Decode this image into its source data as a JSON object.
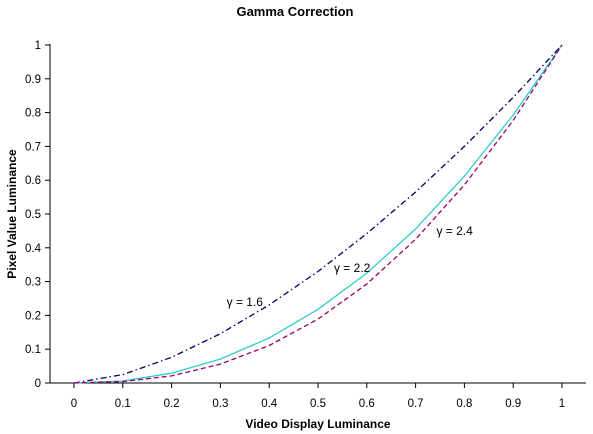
{
  "chart_data": {
    "type": "line",
    "title": "Gamma Correction",
    "xlabel": "Video Display Luminance",
    "ylabel": "Pixel Value Luminance",
    "xlim": [
      0,
      1
    ],
    "ylim": [
      0,
      1
    ],
    "x_ticks": [
      "0",
      "0.1",
      "0.2",
      "0.3",
      "0.4",
      "0.5",
      "0.6",
      "0.7",
      "0.8",
      "0.9",
      "1"
    ],
    "y_ticks": [
      "0",
      "0.1",
      "0.2",
      "0.3",
      "0.4",
      "0.5",
      "0.6",
      "0.7",
      "0.8",
      "0.9",
      "1"
    ],
    "grid": false,
    "x": [
      0,
      0.1,
      0.2,
      0.3,
      0.4,
      0.5,
      0.6,
      0.7,
      0.8,
      0.9,
      1.0
    ],
    "series": [
      {
        "name": "γ = 1.6",
        "values": [
          0,
          0.025,
          0.076,
          0.146,
          0.231,
          0.33,
          0.442,
          0.565,
          0.7,
          0.845,
          1.0
        ],
        "color": "#000066",
        "dash": "dashdot"
      },
      {
        "name": "γ = 2.2",
        "values": [
          0,
          0.006,
          0.029,
          0.071,
          0.133,
          0.218,
          0.325,
          0.456,
          0.612,
          0.793,
          1.0
        ],
        "color": "#33cccc",
        "dash": "solid"
      },
      {
        "name": "γ = 2.4",
        "values": [
          0,
          0.004,
          0.021,
          0.056,
          0.111,
          0.189,
          0.293,
          0.425,
          0.586,
          0.777,
          1.0
        ],
        "color": "#990066",
        "dash": "dashed"
      }
    ],
    "annotations": [
      {
        "text": "γ = 1.6",
        "x": 0.35,
        "y": 0.24
      },
      {
        "text": "γ = 2.2",
        "x": 0.57,
        "y": 0.34
      },
      {
        "text": "γ = 2.4",
        "x": 0.78,
        "y": 0.45
      }
    ]
  }
}
